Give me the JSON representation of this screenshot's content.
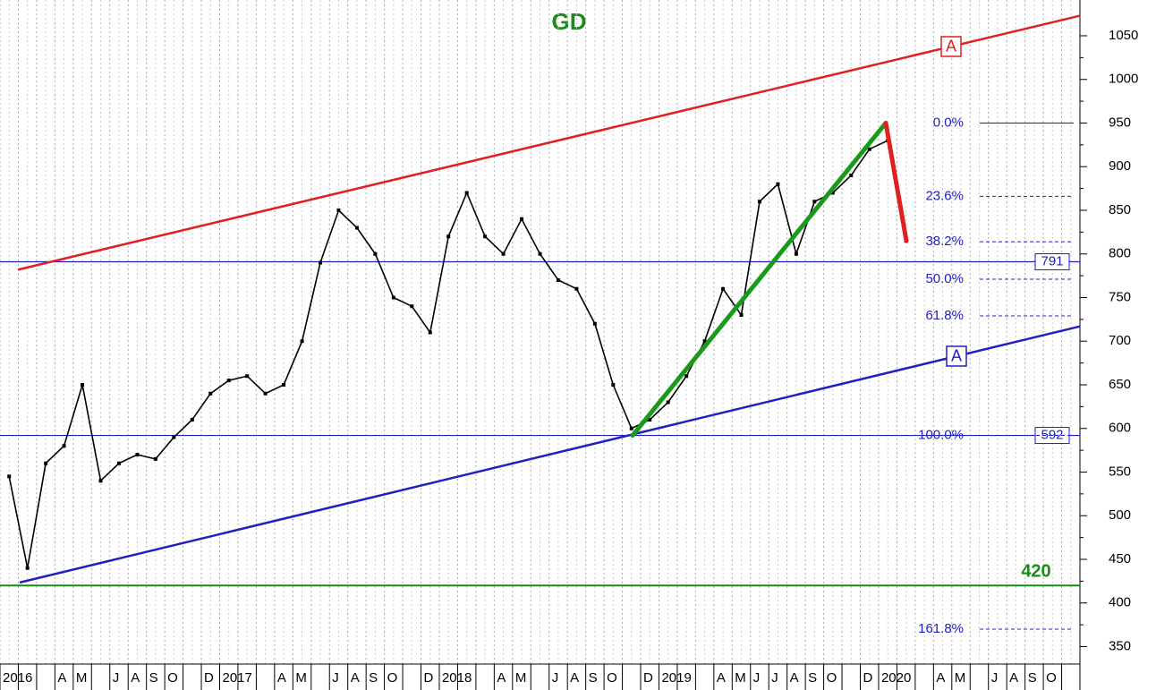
{
  "chart_data": {
    "type": "line",
    "title": "GD",
    "color": "#000000",
    "categories": [
      "2016",
      null,
      null,
      "A",
      "M",
      null,
      "J",
      "A",
      "S",
      "O",
      null,
      "D",
      "2017",
      null,
      null,
      "A",
      "M",
      null,
      "J",
      "A",
      "S",
      "O",
      null,
      "D",
      "2018",
      null,
      null,
      "A",
      "M",
      null,
      "J",
      "A",
      "S",
      "O",
      null,
      "D",
      "2019",
      null,
      null,
      "A",
      "M",
      "J",
      "J",
      "A",
      "S",
      "O",
      null,
      "D",
      "2020",
      null,
      null,
      "A",
      "M",
      null,
      "J",
      "A",
      "S",
      "O",
      null
    ],
    "values": [
      545,
      440,
      560,
      580,
      650,
      540,
      560,
      570,
      565,
      590,
      610,
      640,
      655,
      660,
      640,
      650,
      700,
      790,
      850,
      830,
      800,
      750,
      740,
      710,
      820,
      870,
      820,
      800,
      840,
      800,
      770,
      760,
      720,
      650,
      600,
      610,
      630,
      660,
      700,
      760,
      730,
      860,
      880,
      800,
      860,
      870,
      890,
      920,
      930,
      815,
      null,
      null,
      null,
      null,
      null,
      null,
      null,
      null,
      null
    ],
    "ylim": [
      330,
      1091
    ],
    "yticks": [
      350,
      400,
      450,
      500,
      550,
      600,
      650,
      700,
      750,
      800,
      850,
      900,
      950,
      1000,
      1050
    ],
    "hlines": [
      {
        "value": 791,
        "color": "#2020c0",
        "boxed": true
      },
      {
        "value": 592,
        "color": "#2020c0",
        "boxed": true
      },
      {
        "value": 420,
        "color": "#1a8a1a",
        "boxed": false
      }
    ],
    "fib_levels": [
      {
        "value": 950,
        "label": "0.0%"
      },
      {
        "value": 866,
        "label": "23.6%"
      },
      {
        "value": 814,
        "label": "38.2%"
      },
      {
        "value": 771,
        "label": "50.0%"
      },
      {
        "value": 729,
        "label": "61.8%"
      },
      {
        "value": 592,
        "label": "100.0%"
      },
      {
        "value": 370,
        "label": "161.8%"
      }
    ],
    "fib_color": "#2020c0",
    "trendlines": [
      {
        "color": "#e02020",
        "label": "A",
        "values": [
          777,
          1073
        ]
      },
      {
        "color": "#2020c0",
        "label": "A",
        "values": [
          418,
          717
        ]
      }
    ],
    "swings": [
      {
        "color": "#1a9a1a",
        "values": [
          592,
          950
        ]
      },
      {
        "color": "#e02020",
        "values": [
          950,
          815
        ]
      }
    ]
  }
}
